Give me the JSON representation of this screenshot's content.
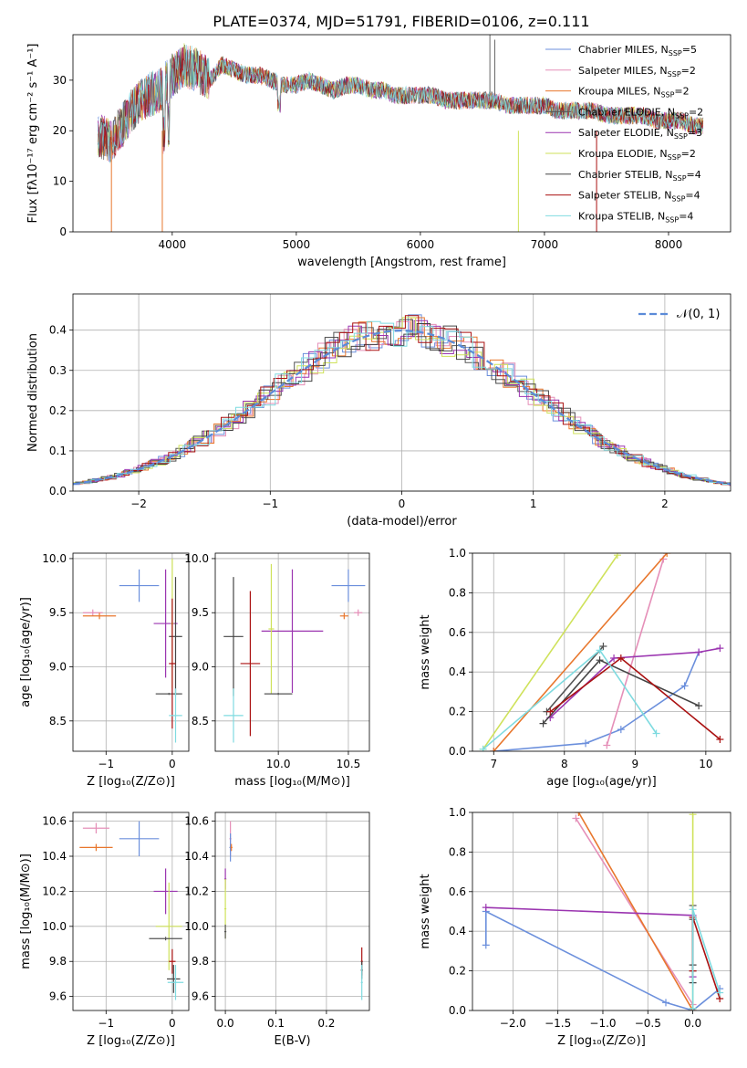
{
  "title": "PLATE=0374, MJD=51791, FIBERID=0106, z=0.111",
  "colors": {
    "Chabrier MILES": "#6b8fdc",
    "Salpeter MILES": "#e58fb8",
    "Kroupa MILES": "#e8772d",
    "Chabrier ELODIE": "#555555",
    "Salpeter ELODIE": "#9b35b0",
    "Kroupa ELODIE": "#cfe25a",
    "Chabrier STELIB": "#444444",
    "Salpeter STELIB": "#aa1111",
    "Kroupa STELIB": "#7fdbe0"
  },
  "legend_spectrum": [
    {
      "model": "Chabrier MILES",
      "label": "Chabrier MILES, N",
      "sub": "SSP",
      "count": "=5"
    },
    {
      "model": "Salpeter MILES",
      "label": "Salpeter MILES, N",
      "sub": "SSP",
      "count": "=2"
    },
    {
      "model": "Kroupa MILES",
      "label": "Kroupa MILES, N",
      "sub": "SSP",
      "count": "=2"
    },
    {
      "model": "Chabrier ELODIE",
      "label": "Chabrier ELODIE, N",
      "sub": "SSP",
      "count": "=2"
    },
    {
      "model": "Salpeter ELODIE",
      "label": "Salpeter ELODIE, N",
      "sub": "SSP",
      "count": "=3"
    },
    {
      "model": "Kroupa ELODIE",
      "label": "Kroupa ELODIE, N",
      "sub": "SSP",
      "count": "=2"
    },
    {
      "model": "Chabrier STELIB",
      "label": "Chabrier STELIB, N",
      "sub": "SSP",
      "count": "=4"
    },
    {
      "model": "Salpeter STELIB",
      "label": "Salpeter STELIB, N",
      "sub": "SSP",
      "count": "=4"
    },
    {
      "model": "Kroupa STELIB",
      "label": "Kroupa STELIB, N",
      "sub": "SSP",
      "count": "=4"
    }
  ],
  "chart_data": [
    {
      "id": "spectrum",
      "type": "line",
      "title": "PLATE=0374, MJD=51791, FIBERID=0106, z=0.111",
      "xlabel": "wavelength [Angstrom, rest frame]",
      "ylabel": "Flux [fλ10⁻¹⁷ erg cm⁻² s⁻¹ A⁻¹]",
      "xlim": [
        3200,
        8500
      ],
      "ylim": [
        0,
        39
      ],
      "xticks": [
        4000,
        5000,
        6000,
        7000,
        8000
      ],
      "yticks": [
        0,
        10,
        20,
        30
      ],
      "grid": false,
      "legend": "top-right",
      "x": [
        3400,
        3500,
        3600,
        3700,
        3800,
        3900,
        4000,
        4100,
        4200,
        4300,
        4400,
        4500,
        4600,
        4700,
        4800,
        4900,
        5000,
        5100,
        5200,
        5300,
        5400,
        5500,
        5600,
        5700,
        5800,
        5900,
        6000,
        6100,
        6200,
        6300,
        6400,
        6500,
        6600,
        6700,
        6800,
        6900,
        7000,
        7100,
        7200,
        7300,
        7400,
        7500,
        7600,
        7700,
        7800,
        7900,
        8000,
        8100,
        8200,
        8280
      ],
      "y": [
        19,
        18,
        21,
        25,
        27,
        28,
        31,
        33,
        32,
        30,
        33,
        32,
        31,
        31,
        30,
        29,
        29,
        30,
        29,
        28,
        29,
        29,
        28,
        28,
        27,
        27,
        27,
        27,
        26,
        26,
        26,
        26,
        26,
        25,
        25,
        25,
        25,
        24,
        24,
        24,
        24,
        23,
        23,
        23,
        23,
        22,
        22,
        22,
        21,
        21
      ],
      "dips": [
        {
          "x": 3510,
          "model": "Kroupa MILES",
          "to": 0
        },
        {
          "x": 3920,
          "model": "Kroupa MILES",
          "to": 0
        },
        {
          "x": 6790,
          "model": "Kroupa ELODIE",
          "to": 0
        },
        {
          "x": 7420,
          "model": "Salpeter STELIB",
          "to": 0
        }
      ],
      "spikes": [
        {
          "x": 6560,
          "model": "Chabrier STELIB",
          "to": 39
        },
        {
          "x": 6600,
          "model": "Chabrier STELIB",
          "to": 38
        }
      ]
    },
    {
      "id": "residuals",
      "type": "line",
      "xlabel": "(data-model)/error",
      "ylabel": "Normed distribution",
      "xlim": [
        -2.5,
        2.5
      ],
      "ylim": [
        0,
        0.49
      ],
      "xticks": [
        -2,
        -1,
        0,
        1,
        2
      ],
      "yticks": [
        0.0,
        0.1,
        0.2,
        0.3,
        0.4
      ],
      "grid": true,
      "legend": "top-right",
      "legend_label": "𝒩(0, 1)",
      "gaussian": {
        "mean": 0,
        "sigma": 1,
        "color": "#5b8bd8"
      },
      "hist_bin_width": 0.1
    },
    {
      "id": "age_vs_Z",
      "type": "scatter",
      "xlabel": "Z [log₁₀(Z/Z⊙)]",
      "ylabel": "age  [log₁₀(age/yr)]",
      "xlim": [
        -1.5,
        0.25
      ],
      "ylim": [
        8.22,
        10.05
      ],
      "xticks": [
        -1,
        0
      ],
      "yticks": [
        8.5,
        9.0,
        9.5,
        10.0
      ],
      "grid": true,
      "points": [
        {
          "model": "Chabrier MILES",
          "x": -0.5,
          "y": 9.75,
          "dx": 0.3,
          "dy": 0.15
        },
        {
          "model": "Salpeter MILES",
          "x": -1.2,
          "y": 9.5,
          "dx": 0.15,
          "dy": 0.03
        },
        {
          "model": "Kroupa MILES",
          "x": -1.1,
          "y": 9.47,
          "dx": 0.25,
          "dy": 0.03
        },
        {
          "model": "Salpeter ELODIE",
          "x": -0.1,
          "y": 9.4,
          "dx": 0.18,
          "dy": 0.5
        },
        {
          "model": "Kroupa ELODIE",
          "x": 0.0,
          "y": 9.4,
          "dx": 0.02,
          "dy": 0.6
        },
        {
          "model": "Chabrier ELODIE",
          "x": -0.05,
          "y": 8.75,
          "dx": 0.2,
          "dy": 0.01
        },
        {
          "model": "Chabrier STELIB",
          "x": 0.05,
          "y": 9.28,
          "dx": 0.1,
          "dy": 0.55
        },
        {
          "model": "Salpeter STELIB",
          "x": 0.0,
          "y": 9.03,
          "dx": 0.05,
          "dy": 0.6
        },
        {
          "model": "Kroupa STELIB",
          "x": 0.05,
          "y": 8.55,
          "dx": 0.1,
          "dy": 0.25
        }
      ]
    },
    {
      "id": "age_vs_mass",
      "type": "scatter",
      "xlabel": "mass [log₁₀(M/M⊙)]",
      "xlim": [
        9.55,
        10.65
      ],
      "ylim": [
        8.22,
        10.05
      ],
      "xticks": [
        10.0,
        10.5
      ],
      "yticks": [
        8.5,
        9.0,
        9.5,
        10.0
      ],
      "grid": true,
      "points": [
        {
          "model": "Chabrier MILES",
          "x": 10.5,
          "y": 9.75,
          "dx": 0.12,
          "dy": 0.15
        },
        {
          "model": "Salpeter MILES",
          "x": 10.57,
          "y": 9.5,
          "dx": 0.03,
          "dy": 0.03
        },
        {
          "model": "Kroupa MILES",
          "x": 10.47,
          "y": 9.47,
          "dx": 0.03,
          "dy": 0.03
        },
        {
          "model": "Salpeter ELODIE",
          "x": 10.1,
          "y": 9.33,
          "dx": 0.22,
          "dy": 0.57
        },
        {
          "model": "Kroupa ELODIE",
          "x": 9.95,
          "y": 9.35,
          "dx": 0.02,
          "dy": 0.6
        },
        {
          "model": "Chabrier ELODIE",
          "x": 10.0,
          "y": 8.75,
          "dx": 0.1,
          "dy": 0.01
        },
        {
          "model": "Chabrier STELIB",
          "x": 9.68,
          "y": 9.28,
          "dx": 0.07,
          "dy": 0.55
        },
        {
          "model": "Salpeter STELIB",
          "x": 9.8,
          "y": 9.03,
          "dx": 0.07,
          "dy": 0.67
        },
        {
          "model": "Kroupa STELIB",
          "x": 9.68,
          "y": 8.55,
          "dx": 0.07,
          "dy": 0.25
        }
      ]
    },
    {
      "id": "weight_vs_age",
      "type": "line",
      "xlabel": "age  [log₁₀(age/yr)]",
      "ylabel": "mass weight",
      "xlim": [
        6.7,
        10.35
      ],
      "ylim": [
        0,
        1.0
      ],
      "xticks": [
        7,
        8,
        9,
        10
      ],
      "yticks": [
        0.0,
        0.2,
        0.4,
        0.6,
        0.8,
        1.0
      ],
      "grid": true,
      "series": [
        {
          "model": "Chabrier MILES",
          "x": [
            7.0,
            8.3,
            8.8,
            9.7,
            9.9
          ],
          "y": [
            0.0,
            0.04,
            0.11,
            0.33,
            0.5
          ]
        },
        {
          "model": "Salpeter MILES",
          "x": [
            8.6,
            9.4
          ],
          "y": [
            0.03,
            0.97
          ]
        },
        {
          "model": "Kroupa MILES",
          "x": [
            7.0,
            9.45
          ],
          "y": [
            0.0,
            1.0
          ]
        },
        {
          "model": "Chabrier ELODIE",
          "x": [
            7.75,
            8.55
          ],
          "y": [
            0.2,
            0.53
          ]
        },
        {
          "model": "Salpeter ELODIE",
          "x": [
            7.8,
            8.7,
            9.9,
            10.2
          ],
          "y": [
            0.17,
            0.47,
            0.5,
            0.52
          ]
        },
        {
          "model": "Kroupa ELODIE",
          "x": [
            6.85,
            8.75
          ],
          "y": [
            0.01,
            0.99
          ]
        },
        {
          "model": "Chabrier STELIB",
          "x": [
            7.7,
            8.5,
            9.9
          ],
          "y": [
            0.14,
            0.46,
            0.23
          ]
        },
        {
          "model": "Salpeter STELIB",
          "x": [
            7.8,
            8.8,
            10.2
          ],
          "y": [
            0.2,
            0.47,
            0.06
          ]
        },
        {
          "model": "Kroupa STELIB",
          "x": [
            6.85,
            8.5,
            9.3
          ],
          "y": [
            0.01,
            0.51,
            0.09
          ]
        }
      ]
    },
    {
      "id": "mass_vs_Z",
      "type": "scatter",
      "xlabel": "Z [log₁₀(Z/Z⊙)]",
      "ylabel": "mass [log₁₀(M/M⊙)]",
      "xlim": [
        -1.5,
        0.25
      ],
      "ylim": [
        9.52,
        10.65
      ],
      "xticks": [
        -1,
        0
      ],
      "yticks": [
        9.6,
        9.8,
        10.0,
        10.2,
        10.4,
        10.6
      ],
      "grid": true,
      "points": [
        {
          "model": "Salpeter MILES",
          "x": -1.15,
          "y": 10.56,
          "dx": 0.2,
          "dy": 0.03
        },
        {
          "model": "Chabrier MILES",
          "x": -0.5,
          "y": 10.5,
          "dx": 0.3,
          "dy": 0.1
        },
        {
          "model": "Kroupa MILES",
          "x": -1.15,
          "y": 10.45,
          "dx": 0.25,
          "dy": 0.02
        },
        {
          "model": "Salpeter ELODIE",
          "x": -0.1,
          "y": 10.2,
          "dx": 0.18,
          "dy": 0.13
        },
        {
          "model": "Kroupa ELODIE",
          "x": -0.05,
          "y": 10.0,
          "dx": 0.2,
          "dy": 0.25
        },
        {
          "model": "Chabrier ELODIE",
          "x": -0.1,
          "y": 9.93,
          "dx": 0.25,
          "dy": 0.01
        },
        {
          "model": "Salpeter STELIB",
          "x": 0.0,
          "y": 9.8,
          "dx": 0.05,
          "dy": 0.07
        },
        {
          "model": "Chabrier STELIB",
          "x": 0.02,
          "y": 9.7,
          "dx": 0.1,
          "dy": 0.08
        },
        {
          "model": "Kroupa STELIB",
          "x": 0.05,
          "y": 9.68,
          "dx": 0.12,
          "dy": 0.1
        }
      ]
    },
    {
      "id": "mass_vs_ebv",
      "type": "scatter",
      "xlabel": "E(B-V)",
      "xlim": [
        -0.02,
        0.285
      ],
      "ylim": [
        9.52,
        10.65
      ],
      "xticks": [
        0.0,
        0.1,
        0.2
      ],
      "yticks": [
        9.6,
        9.8,
        10.0,
        10.2,
        10.4,
        10.6
      ],
      "grid": true,
      "points": [
        {
          "model": "Salpeter MILES",
          "x": 0.01,
          "y": 10.5,
          "dx": 0.002,
          "dy": 0.1
        },
        {
          "model": "Chabrier MILES",
          "x": 0.01,
          "y": 10.45,
          "dx": 0.002,
          "dy": 0.08
        },
        {
          "model": "Kroupa MILES",
          "x": 0.012,
          "y": 10.45,
          "dx": 0.002,
          "dy": 0.02
        },
        {
          "model": "Salpeter ELODIE",
          "x": 0.0,
          "y": 10.27,
          "dx": 0.002,
          "dy": 0.06
        },
        {
          "model": "Kroupa ELODIE",
          "x": 0.0,
          "y": 10.1,
          "dx": 0.002,
          "dy": 0.17
        },
        {
          "model": "Chabrier ELODIE",
          "x": 0.0,
          "y": 9.97,
          "dx": 0.002,
          "dy": 0.04
        },
        {
          "model": "Salpeter STELIB",
          "x": 0.27,
          "y": 9.8,
          "dx": 0.002,
          "dy": 0.08
        },
        {
          "model": "Chabrier STELIB",
          "x": 0.27,
          "y": 9.75,
          "dx": 0.002,
          "dy": 0.05
        },
        {
          "model": "Kroupa STELIB",
          "x": 0.27,
          "y": 9.68,
          "dx": 0.002,
          "dy": 0.1
        }
      ]
    },
    {
      "id": "weight_vs_Z",
      "type": "line",
      "xlabel": "Z [log₁₀(Z/Z⊙)]",
      "ylabel": "mass weight",
      "xlim": [
        -2.45,
        0.42
      ],
      "ylim": [
        0,
        1.0
      ],
      "xticks": [
        -2.0,
        -1.5,
        -1.0,
        -0.5,
        0.0
      ],
      "yticks": [
        0.0,
        0.2,
        0.4,
        0.6,
        0.8,
        1.0
      ],
      "grid": true,
      "series": [
        {
          "model": "Chabrier MILES",
          "x": [
            -2.3,
            -2.3,
            -0.3,
            0.0,
            0.3
          ],
          "y": [
            0.33,
            0.5,
            0.04,
            0.0,
            0.11
          ]
        },
        {
          "model": "Salpeter MILES",
          "x": [
            -1.3,
            0.0
          ],
          "y": [
            0.97,
            0.03
          ]
        },
        {
          "model": "Kroupa MILES",
          "x": [
            -1.27,
            0.0
          ],
          "y": [
            1.0,
            0.0
          ]
        },
        {
          "model": "Chabrier ELODIE",
          "x": [
            0.0,
            0.0
          ],
          "y": [
            0.2,
            0.53
          ]
        },
        {
          "model": "Salpeter ELODIE",
          "x": [
            -2.3,
            0.0,
            0.0
          ],
          "y": [
            0.52,
            0.48,
            0.17
          ]
        },
        {
          "model": "Kroupa ELODIE",
          "x": [
            0.0,
            0.0
          ],
          "y": [
            0.01,
            0.99
          ]
        },
        {
          "model": "Chabrier STELIB",
          "x": [
            0.0,
            0.0,
            0.0
          ],
          "y": [
            0.14,
            0.46,
            0.23
          ]
        },
        {
          "model": "Salpeter STELIB",
          "x": [
            0.0,
            0.0,
            0.3
          ],
          "y": [
            0.2,
            0.47,
            0.06
          ]
        },
        {
          "model": "Kroupa STELIB",
          "x": [
            0.0,
            0.0,
            0.3
          ],
          "y": [
            0.01,
            0.51,
            0.09
          ]
        }
      ]
    }
  ]
}
